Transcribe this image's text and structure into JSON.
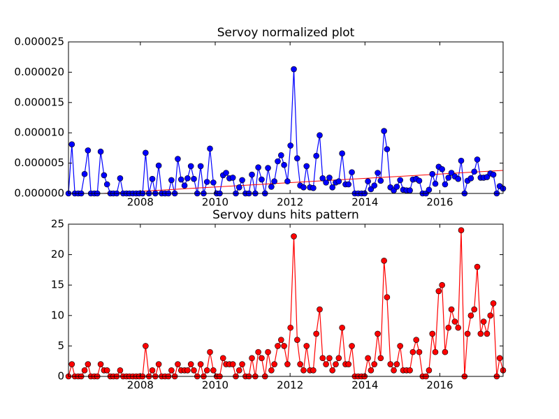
{
  "chart_data": [
    {
      "type": "line",
      "title": "Servoy normalized plot",
      "x": [
        2006.08,
        2006.17,
        2006.25,
        2006.34,
        2006.42,
        2006.51,
        2006.6,
        2006.68,
        2006.77,
        2006.85,
        2006.94,
        2007.03,
        2007.11,
        2007.2,
        2007.28,
        2007.37,
        2007.46,
        2007.54,
        2007.63,
        2007.71,
        2007.8,
        2007.89,
        2007.97,
        2008.06,
        2008.14,
        2008.23,
        2008.32,
        2008.4,
        2008.49,
        2008.57,
        2008.66,
        2008.75,
        2008.83,
        2008.92,
        2009.0,
        2009.09,
        2009.18,
        2009.26,
        2009.35,
        2009.43,
        2009.52,
        2009.61,
        2009.69,
        2009.78,
        2009.86,
        2009.95,
        2010.04,
        2010.12,
        2010.21,
        2010.29,
        2010.38,
        2010.47,
        2010.55,
        2010.64,
        2010.72,
        2010.81,
        2010.9,
        2010.98,
        2011.07,
        2011.15,
        2011.24,
        2011.33,
        2011.41,
        2011.5,
        2011.58,
        2011.67,
        2011.76,
        2011.84,
        2011.93,
        2012.01,
        2012.1,
        2012.19,
        2012.27,
        2012.36,
        2012.44,
        2012.53,
        2012.62,
        2012.7,
        2012.79,
        2012.87,
        2012.96,
        2013.05,
        2013.13,
        2013.22,
        2013.3,
        2013.39,
        2013.48,
        2013.56,
        2013.65,
        2013.73,
        2013.82,
        2013.91,
        2013.99,
        2014.08,
        2014.16,
        2014.25,
        2014.34,
        2014.42,
        2014.51,
        2014.59,
        2014.68,
        2014.77,
        2014.85,
        2014.94,
        2015.02,
        2015.11,
        2015.2,
        2015.28,
        2015.37,
        2015.45,
        2015.54,
        2015.63,
        2015.71,
        2015.8,
        2015.88,
        2015.97,
        2016.06,
        2016.14,
        2016.23,
        2016.31,
        2016.4,
        2016.49,
        2016.57,
        2016.66,
        2016.74,
        2016.83,
        2016.92,
        2017.0,
        2017.09,
        2017.17,
        2017.26,
        2017.35,
        2017.43,
        2017.52,
        2017.6,
        2017.69
      ],
      "values": [
        0,
        8.1e-06,
        0,
        0,
        0,
        3.2e-06,
        7.1e-06,
        0,
        0,
        0,
        6.9e-06,
        3e-06,
        1.5e-06,
        0,
        0,
        0,
        2.5e-06,
        0,
        0,
        0,
        0,
        0,
        0,
        0,
        6.7e-06,
        0,
        2.4e-06,
        0,
        4.6e-06,
        0,
        0,
        0,
        2.2e-06,
        0,
        5.7e-06,
        2.3e-06,
        1.3e-06,
        2.5e-06,
        4.5e-06,
        2.4e-06,
        0,
        4.5e-06,
        0,
        1.9e-06,
        7.4e-06,
        1.8e-06,
        0,
        0,
        3e-06,
        3.4e-06,
        2.5e-06,
        2.6e-06,
        0,
        1e-06,
        2.2e-06,
        0,
        0,
        3.1e-06,
        0,
        4.3e-06,
        2.3e-06,
        0,
        4.2e-06,
        1.1e-06,
        2e-06,
        5.3e-06,
        6.3e-06,
        4.7e-06,
        2e-06,
        7.9e-06,
        2.05e-05,
        5.8e-06,
        1.3e-06,
        1e-06,
        4.5e-06,
        1e-06,
        9e-07,
        6.2e-06,
        9.6e-06,
        2.5e-06,
        1.8e-06,
        2.6e-06,
        1e-06,
        1.8e-06,
        2e-06,
        6.6e-06,
        1.5e-06,
        1.5e-06,
        3.5e-06,
        0,
        0,
        0,
        0,
        2e-06,
        7e-07,
        1.3e-06,
        3.4e-06,
        2.1e-06,
        1.03e-05,
        7.3e-06,
        1e-06,
        5e-07,
        1.1e-06,
        2.2e-06,
        6e-07,
        5e-07,
        5e-07,
        2.3e-06,
        2.4e-06,
        2.1e-06,
        0,
        0,
        6e-07,
        3.2e-06,
        1.6e-06,
        4.4e-06,
        4e-06,
        1.5e-06,
        2.6e-06,
        3.4e-06,
        2.8e-06,
        2.4e-06,
        5.4e-06,
        0,
        2.1e-06,
        2.5e-06,
        3.6e-06,
        5.6e-06,
        2.6e-06,
        2.6e-06,
        2.7e-06,
        3.3e-06,
        3.1e-06,
        0,
        1.2e-06,
        8e-07
      ],
      "color": "#0000ff",
      "trend": {
        "x": [
          2006.08,
          2017.69
        ],
        "values": [
          -3.3e-07,
          3.8e-06
        ],
        "color": "#ff0000"
      },
      "xlim": [
        2006.08,
        2017.69
      ],
      "xticks": [
        2008,
        2010,
        2012,
        2014,
        2016
      ],
      "ylim": [
        0,
        2.5e-05
      ],
      "yticks": [
        {
          "value": 0,
          "label": "0.000000"
        },
        {
          "value": 5e-06,
          "label": "0.000005"
        },
        {
          "value": 1e-05,
          "label": "0.000010"
        },
        {
          "value": 1.5e-05,
          "label": "0.000015"
        },
        {
          "value": 2e-05,
          "label": "0.000020"
        },
        {
          "value": 2.5e-05,
          "label": "0.000025"
        }
      ]
    },
    {
      "type": "line",
      "title": "Servoy duns hits pattern",
      "x": [
        2006.08,
        2006.17,
        2006.25,
        2006.34,
        2006.42,
        2006.51,
        2006.6,
        2006.68,
        2006.77,
        2006.85,
        2006.94,
        2007.03,
        2007.11,
        2007.2,
        2007.28,
        2007.37,
        2007.46,
        2007.54,
        2007.63,
        2007.71,
        2007.8,
        2007.89,
        2007.97,
        2008.06,
        2008.14,
        2008.23,
        2008.32,
        2008.4,
        2008.49,
        2008.57,
        2008.66,
        2008.75,
        2008.83,
        2008.92,
        2009.0,
        2009.09,
        2009.18,
        2009.26,
        2009.35,
        2009.43,
        2009.52,
        2009.61,
        2009.69,
        2009.78,
        2009.86,
        2009.95,
        2010.04,
        2010.12,
        2010.21,
        2010.29,
        2010.38,
        2010.47,
        2010.55,
        2010.64,
        2010.72,
        2010.81,
        2010.9,
        2010.98,
        2011.07,
        2011.15,
        2011.24,
        2011.33,
        2011.41,
        2011.5,
        2011.58,
        2011.67,
        2011.76,
        2011.84,
        2011.93,
        2012.01,
        2012.1,
        2012.19,
        2012.27,
        2012.36,
        2012.44,
        2012.53,
        2012.62,
        2012.7,
        2012.79,
        2012.87,
        2012.96,
        2013.05,
        2013.13,
        2013.22,
        2013.3,
        2013.39,
        2013.48,
        2013.56,
        2013.65,
        2013.73,
        2013.82,
        2013.91,
        2013.99,
        2014.08,
        2014.16,
        2014.25,
        2014.34,
        2014.42,
        2014.51,
        2014.59,
        2014.68,
        2014.77,
        2014.85,
        2014.94,
        2015.02,
        2015.11,
        2015.2,
        2015.28,
        2015.37,
        2015.45,
        2015.54,
        2015.63,
        2015.71,
        2015.8,
        2015.88,
        2015.97,
        2016.06,
        2016.14,
        2016.23,
        2016.31,
        2016.4,
        2016.49,
        2016.57,
        2016.66,
        2016.74,
        2016.83,
        2016.92,
        2017.0,
        2017.09,
        2017.17,
        2017.26,
        2017.35,
        2017.43,
        2017.52,
        2017.6,
        2017.69
      ],
      "values": [
        0,
        2,
        0,
        0,
        0,
        1,
        2,
        0,
        0,
        0,
        2,
        1,
        1,
        0,
        0,
        0,
        1,
        0,
        0,
        0,
        0,
        0,
        0,
        0,
        5,
        0,
        1,
        0,
        2,
        0,
        0,
        0,
        1,
        0,
        2,
        1,
        1,
        1,
        2,
        1,
        0,
        2,
        0,
        1,
        4,
        1,
        0,
        0,
        3,
        2,
        2,
        2,
        0,
        1,
        2,
        0,
        0,
        3,
        0,
        4,
        3,
        0,
        4,
        1,
        2,
        5,
        6,
        5,
        2,
        8,
        23,
        6,
        2,
        1,
        5,
        1,
        1,
        7,
        11,
        3,
        2,
        3,
        1,
        2,
        3,
        8,
        2,
        2,
        5,
        0,
        0,
        0,
        0,
        3,
        1,
        2,
        7,
        3,
        19,
        13,
        2,
        1,
        2,
        5,
        1,
        1,
        1,
        4,
        6,
        4,
        0,
        0,
        1,
        7,
        4,
        14,
        15,
        4,
        8,
        11,
        9,
        8,
        24,
        0,
        7,
        10,
        11,
        18,
        7,
        9,
        7,
        10,
        12,
        0,
        3,
        1
      ],
      "color": "#ff0000",
      "xlim": [
        2006.08,
        2017.69
      ],
      "xticks": [
        2008,
        2010,
        2012,
        2014,
        2016
      ],
      "ylim": [
        0,
        25
      ],
      "yticks": [
        0,
        5,
        10,
        15,
        20,
        25
      ]
    }
  ]
}
